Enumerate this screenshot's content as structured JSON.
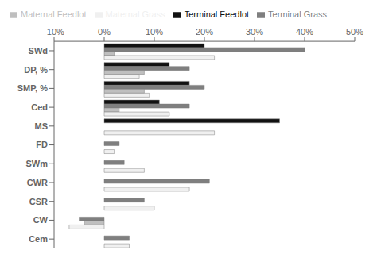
{
  "chart_data": {
    "type": "bar",
    "orientation": "horizontal",
    "categories": [
      "SWd",
      "DP, %",
      "SMP, %",
      "Ced",
      "MS",
      "FD",
      "SWm",
      "CWR",
      "CSR",
      "CW",
      "Cem"
    ],
    "series": [
      {
        "name": "Terminal Feedlot",
        "color": "#111111",
        "values": [
          20,
          13,
          17,
          11,
          35,
          0,
          0,
          0,
          0,
          0,
          0
        ]
      },
      {
        "name": "Terminal Grass",
        "color": "#7f7f7f",
        "values": [
          40,
          17,
          20,
          17,
          0,
          3,
          4,
          21,
          8,
          -5,
          5
        ]
      },
      {
        "name": "Maternal Feedlot",
        "color": "#bfbfbf",
        "values": [
          2,
          8,
          8,
          3,
          0,
          0,
          0,
          0,
          0,
          -4,
          0
        ]
      },
      {
        "name": "Maternal Grass",
        "color": "#f0f0f0",
        "values": [
          22,
          7,
          9,
          13,
          22,
          2,
          8,
          17,
          10,
          -7,
          5
        ]
      }
    ],
    "xlim": [
      -10,
      50
    ],
    "xticks": [
      {
        "value": -10,
        "label": "-10%"
      },
      {
        "value": 0,
        "label": "0%"
      },
      {
        "value": 10,
        "label": "10%"
      },
      {
        "value": 20,
        "label": "20%"
      },
      {
        "value": 30,
        "label": "30%"
      },
      {
        "value": 40,
        "label": "40%"
      },
      {
        "value": 50,
        "label": "50%"
      }
    ],
    "legend": "upper left"
  }
}
